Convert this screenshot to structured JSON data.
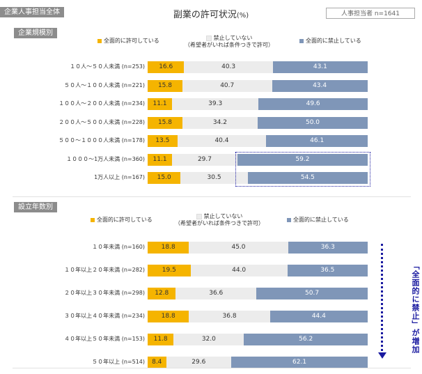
{
  "header": {
    "tag": "企業人事担当全体",
    "title": "副業の許可状況",
    "title_unit": "(%)",
    "respondents": "人事担当者 n=1641"
  },
  "colors": {
    "allowed": "#f5b400",
    "not_allowed": "#ececec",
    "prohibited": "#7f96b8",
    "accent": "#1a1aa0"
  },
  "legend": {
    "allowed": "全面的に許可している",
    "not_allowed_line1": "禁止していない",
    "not_allowed_line2": "（希望者がいれば条件つきで許可）",
    "prohibited": "全面的に禁止している"
  },
  "side_note": "「全面的に禁止」が増加",
  "chart_data": [
    {
      "type": "bar",
      "stacked": true,
      "orientation": "horizontal",
      "title": "企業規模別",
      "categories": [
        "１０人～５０人未満 (n=253)",
        "５０人～１００人未満 (n=221)",
        "１００人～２００人未満 (n=234)",
        "２００人～５００人未満 (n=228)",
        "５００～１０００人未満 (n=178)",
        "１０００～1万人未満 (n=360)",
        "1万人以上 (n=167)"
      ],
      "series": [
        {
          "name": "全面的に許可している",
          "values": [
            16.6,
            15.8,
            11.1,
            15.8,
            13.5,
            11.1,
            15.0
          ]
        },
        {
          "name": "禁止していない（希望者がいれば条件つきで許可）",
          "values": [
            40.3,
            40.7,
            39.3,
            34.2,
            40.4,
            29.7,
            30.5
          ]
        },
        {
          "name": "全面的に禁止している",
          "values": [
            43.1,
            43.4,
            49.6,
            50.0,
            46.1,
            59.2,
            54.5
          ]
        }
      ],
      "highlight_rows": [
        5,
        6
      ],
      "xlim": [
        0,
        100
      ]
    },
    {
      "type": "bar",
      "stacked": true,
      "orientation": "horizontal",
      "title": "設立年数別",
      "categories": [
        "１０年未満 (n=160)",
        "１０年以上２０年未満 (n=282)",
        "２０年以上３０年未満 (n=298)",
        "３０年以上４０年未満 (n=234)",
        "４０年以上５０年未満 (n=153)",
        "５０年以上 (n=514)"
      ],
      "series": [
        {
          "name": "全面的に許可している",
          "values": [
            18.8,
            19.5,
            12.8,
            18.8,
            11.8,
            8.4
          ]
        },
        {
          "name": "禁止していない（希望者がいれば条件つきで許可）",
          "values": [
            45.0,
            44.0,
            36.6,
            36.8,
            32.0,
            29.6
          ]
        },
        {
          "name": "全面的に禁止している",
          "values": [
            36.3,
            36.5,
            50.7,
            44.4,
            56.2,
            62.1
          ]
        }
      ],
      "xlim": [
        0,
        100
      ]
    }
  ]
}
